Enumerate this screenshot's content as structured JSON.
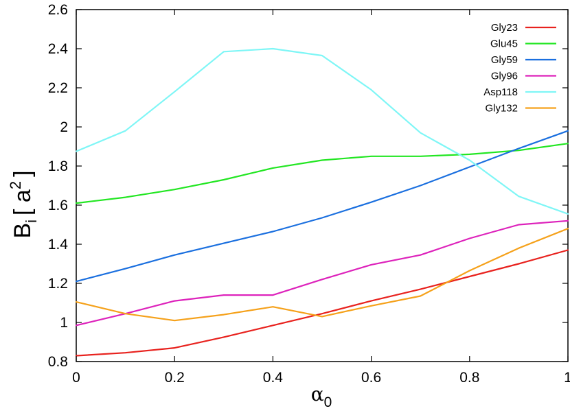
{
  "chart_data": {
    "type": "line",
    "xlabel": "α",
    "xlabel_sub": "0",
    "ylabel": "B",
    "ylabel_sub": "i",
    "ylabel_unit": "[ a",
    "ylabel_unit_sup": "2",
    "ylabel_unit_close": "]",
    "xlim": [
      0,
      1
    ],
    "ylim": [
      0.8,
      2.6
    ],
    "xticks": [
      0,
      0.2,
      0.4,
      0.6,
      0.8,
      1
    ],
    "xtick_labels": [
      "0",
      "0.2",
      "0.4",
      "0.6",
      "0.8",
      "1"
    ],
    "yticks": [
      0.8,
      1,
      1.2,
      1.4,
      1.6,
      1.8,
      2,
      2.2,
      2.4,
      2.6
    ],
    "ytick_labels": [
      "0.8",
      "1",
      "1.2",
      "1.4",
      "1.6",
      "1.8",
      "2",
      "2.2",
      "2.4",
      "2.6"
    ],
    "grid": false,
    "legend_position": "top-right",
    "x": [
      0,
      0.1,
      0.2,
      0.3,
      0.4,
      0.5,
      0.6,
      0.7,
      0.8,
      0.9,
      1.0
    ],
    "series": [
      {
        "name": "Gly23",
        "color": "#e8221e",
        "values": [
          0.83,
          0.845,
          0.87,
          0.925,
          0.985,
          1.045,
          1.11,
          1.17,
          1.235,
          1.3,
          1.37
        ]
      },
      {
        "name": "Glu45",
        "color": "#22e622",
        "values": [
          1.61,
          1.64,
          1.68,
          1.73,
          1.79,
          1.83,
          1.85,
          1.85,
          1.86,
          1.88,
          1.915
        ]
      },
      {
        "name": "Gly59",
        "color": "#1a6fdf",
        "values": [
          1.21,
          1.275,
          1.345,
          1.405,
          1.465,
          1.535,
          1.615,
          1.7,
          1.795,
          1.89,
          1.98
        ]
      },
      {
        "name": "Gly96",
        "color": "#dd22bb",
        "values": [
          0.985,
          1.045,
          1.11,
          1.14,
          1.14,
          1.22,
          1.295,
          1.345,
          1.43,
          1.5,
          1.52
        ]
      },
      {
        "name": "Asp118",
        "color": "#7ff6f6",
        "values": [
          1.875,
          1.98,
          2.18,
          2.385,
          2.4,
          2.365,
          2.19,
          1.97,
          1.83,
          1.645,
          1.555
        ]
      },
      {
        "name": "Gly132",
        "color": "#f5a11a",
        "values": [
          1.105,
          1.045,
          1.01,
          1.04,
          1.08,
          1.03,
          1.085,
          1.135,
          1.265,
          1.38,
          1.48
        ]
      }
    ]
  }
}
